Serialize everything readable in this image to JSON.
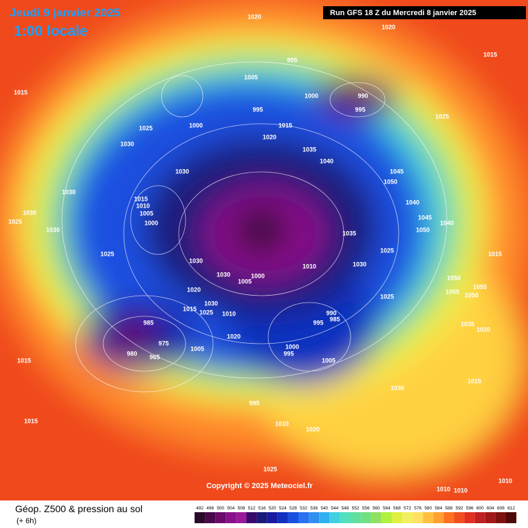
{
  "header": {
    "date": "Jeudi 9 janvier 2025",
    "time": "1:00 locale",
    "run": "Run GFS 18 Z du Mercredi 8 janvier 2025"
  },
  "copyright": "Copyright © 2025 Meteociel.fr",
  "footer": {
    "title": "Géop. Z500 & pression au sol",
    "lead": "(+ 6h)"
  },
  "colorbar": {
    "ticks": [
      492,
      496,
      500,
      504,
      508,
      512,
      516,
      520,
      524,
      528,
      532,
      536,
      540,
      544,
      548,
      552,
      556,
      560,
      564,
      568,
      572,
      576,
      580,
      584,
      588,
      592,
      596,
      600,
      604,
      608,
      612
    ],
    "colors": [
      "#2a0a2a",
      "#4a0a4a",
      "#6a0a6a",
      "#8a108a",
      "#9a1a9a",
      "#3a0a6a",
      "#1a1a7a",
      "#1a1aa0",
      "#1030c0",
      "#1a50e0",
      "#2a70f0",
      "#3090f0",
      "#30b0f0",
      "#40d0e0",
      "#50e0c0",
      "#60e0a0",
      "#70e080",
      "#90e060",
      "#b0f040",
      "#e0f040",
      "#f0f060",
      "#ffe060",
      "#ffc040",
      "#ffa030",
      "#ff7020",
      "#f05020",
      "#e03020",
      "#c02020",
      "#a01818",
      "#801010",
      "#500808"
    ]
  },
  "isobar_labels": [
    1020,
    1020,
    1015,
    1015,
    1025,
    1030,
    1005,
    995,
    1000,
    990,
    995,
    995,
    1015,
    1020,
    1000,
    1035,
    1040,
    1025,
    1045,
    1050,
    1040,
    1045,
    1050,
    1040,
    1035,
    1025,
    1030,
    1010,
    1030,
    1030,
    1025,
    1030,
    1030,
    1015,
    1010,
    1005,
    1000,
    1025,
    1030,
    1030,
    1005,
    1000,
    1020,
    1030,
    1015,
    1025,
    1010,
    1020,
    985,
    980,
    975,
    965,
    1005,
    990,
    985,
    995,
    1000,
    995,
    1005,
    995,
    1010,
    1020,
    1030,
    1015,
    1035,
    1020,
    1050,
    1055,
    1055,
    1050,
    1025,
    1015,
    1015,
    1025,
    1010,
    1010,
    1010,
    1015
  ]
}
